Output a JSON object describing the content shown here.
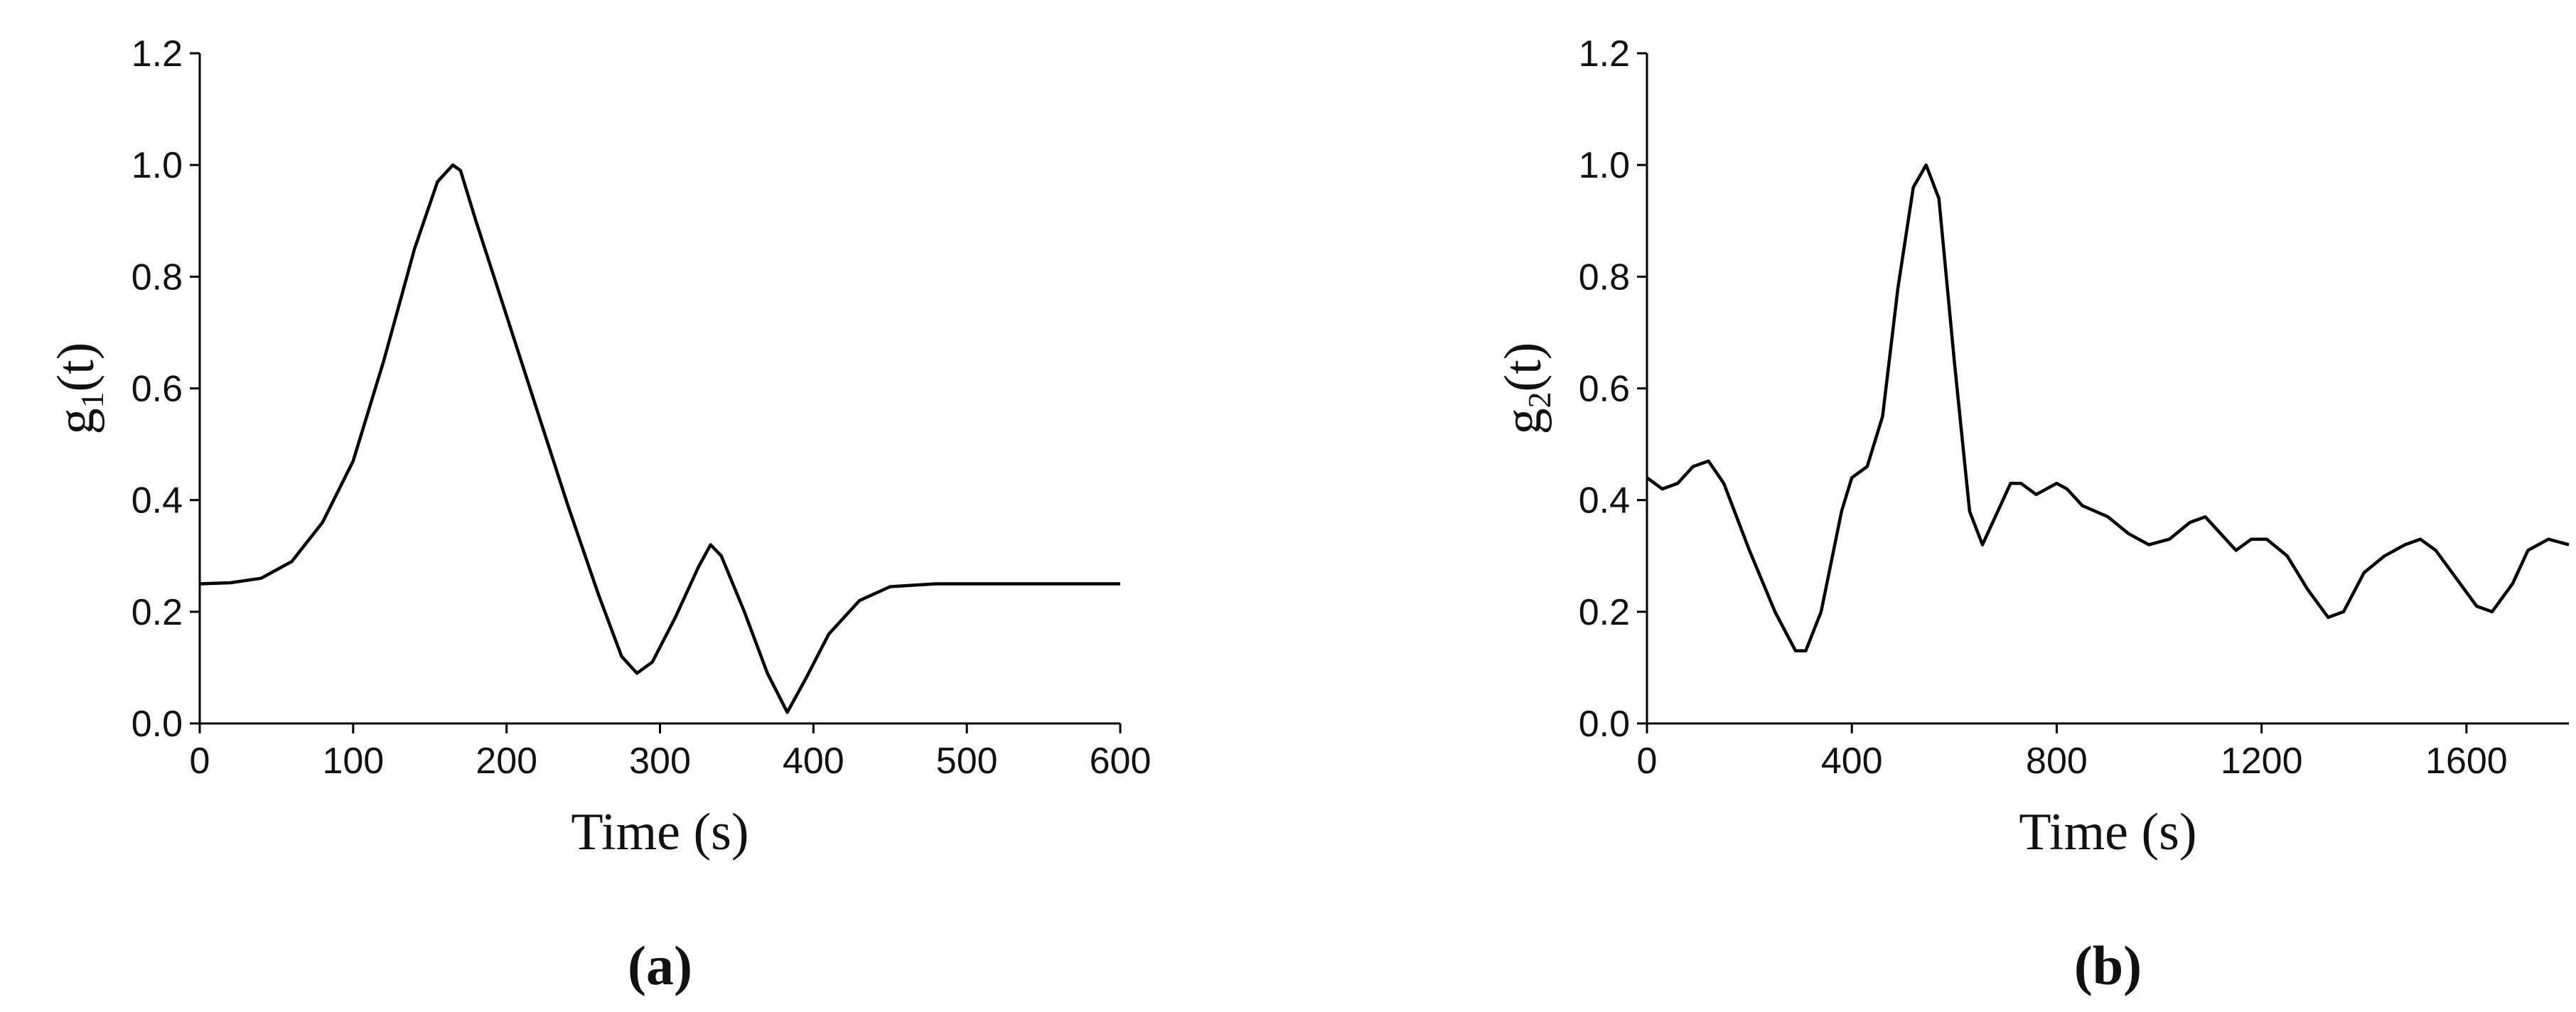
{
  "chart_data": [
    {
      "type": "line",
      "xlabel": "Time (s)",
      "ylabel": {
        "base": "g",
        "sub": "1",
        "rest": "(t)"
      },
      "panel_label": "(a)",
      "x": [
        0,
        20,
        40,
        60,
        80,
        100,
        120,
        140,
        155,
        165,
        170,
        180,
        200,
        220,
        240,
        260,
        275,
        285,
        295,
        310,
        325,
        333,
        340,
        355,
        370,
        383,
        395,
        410,
        430,
        450,
        480,
        600
      ],
      "values": [
        0.25,
        0.252,
        0.26,
        0.29,
        0.36,
        0.47,
        0.65,
        0.85,
        0.97,
        1.0,
        0.99,
        0.9,
        0.73,
        0.56,
        0.39,
        0.23,
        0.12,
        0.09,
        0.11,
        0.19,
        0.28,
        0.32,
        0.3,
        0.2,
        0.09,
        0.02,
        0.08,
        0.16,
        0.22,
        0.245,
        0.25,
        0.25
      ],
      "color": "#000000",
      "xlim": [
        0,
        600
      ],
      "xticks": [
        0,
        100,
        200,
        300,
        400,
        500,
        600
      ],
      "ylim": [
        0,
        1.2
      ],
      "yticks": [
        {
          "value": 0,
          "label": "0.0"
        },
        0.2,
        0.4,
        0.6,
        0.8,
        {
          "value": 1,
          "label": "1.0"
        },
        1.2
      ]
    },
    {
      "type": "line",
      "xlabel": "Time (s)",
      "ylabel": {
        "base": "g",
        "sub": "2",
        "rest": "(t)"
      },
      "panel_label": "(b)",
      "x": [
        0,
        30,
        60,
        90,
        120,
        150,
        200,
        250,
        290,
        310,
        340,
        380,
        400,
        430,
        460,
        490,
        520,
        545,
        570,
        600,
        630,
        655,
        680,
        710,
        730,
        760,
        800,
        820,
        850,
        900,
        940,
        980,
        1020,
        1060,
        1090,
        1120,
        1150,
        1180,
        1210,
        1250,
        1290,
        1330,
        1360,
        1400,
        1440,
        1480,
        1510,
        1540,
        1580,
        1620,
        1650,
        1690,
        1720,
        1760,
        1800
      ],
      "values": [
        0.44,
        0.42,
        0.43,
        0.46,
        0.47,
        0.43,
        0.31,
        0.2,
        0.13,
        0.13,
        0.2,
        0.38,
        0.44,
        0.46,
        0.55,
        0.78,
        0.96,
        1.0,
        0.94,
        0.65,
        0.38,
        0.32,
        0.37,
        0.43,
        0.43,
        0.41,
        0.43,
        0.42,
        0.39,
        0.37,
        0.34,
        0.32,
        0.33,
        0.36,
        0.37,
        0.34,
        0.31,
        0.33,
        0.33,
        0.3,
        0.24,
        0.19,
        0.2,
        0.27,
        0.3,
        0.32,
        0.33,
        0.31,
        0.26,
        0.21,
        0.2,
        0.25,
        0.31,
        0.33,
        0.32
      ],
      "color": "#000000",
      "xlim": [
        0,
        1800
      ],
      "xticks": [
        0,
        400,
        800,
        1200,
        1600
      ],
      "ylim": [
        0,
        1.2
      ],
      "yticks": [
        {
          "value": 0,
          "label": "0.0"
        },
        0.2,
        0.4,
        0.6,
        0.8,
        {
          "value": 1,
          "label": "1.0"
        },
        1.2
      ]
    }
  ]
}
